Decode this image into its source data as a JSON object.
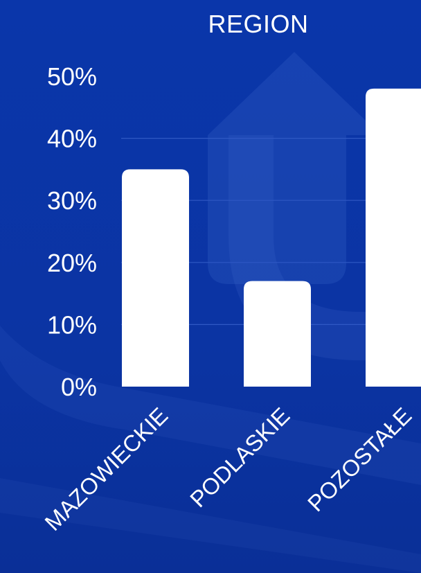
{
  "chart_data": {
    "type": "bar",
    "title": "REGION",
    "categories": [
      "MAZOWIECKIE",
      "PODLASKIE",
      "POZOSTAŁE"
    ],
    "values": [
      35,
      17,
      48
    ],
    "ylim": [
      0,
      50
    ],
    "yticks": [
      "0%",
      "10%",
      "20%",
      "30%",
      "40%",
      "50%"
    ],
    "ytick_values": [
      0,
      10,
      20,
      30,
      40,
      50
    ],
    "grid": true,
    "legend": "none",
    "xlabel": "",
    "ylabel": ""
  },
  "colors": {
    "background": "#0b35a6",
    "bar": "#ffffff",
    "grid": "#2f58c4",
    "text": "#ffffff"
  }
}
